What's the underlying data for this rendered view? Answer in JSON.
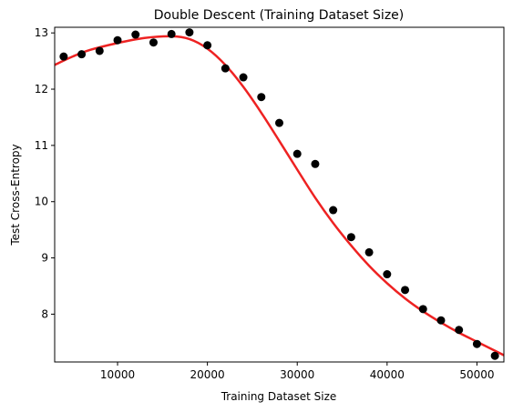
{
  "chart_data": {
    "type": "scatter",
    "title": "Double Descent (Training Dataset Size)",
    "xlabel": "Training Dataset Size",
    "ylabel": "Test Cross-Entropy",
    "xlim": [
      3000,
      53000
    ],
    "ylim": [
      7.15,
      13.1
    ],
    "x_ticks": [
      10000,
      20000,
      30000,
      40000,
      50000
    ],
    "y_ticks": [
      8,
      9,
      10,
      11,
      12,
      13
    ],
    "grid": false,
    "series": [
      {
        "kind": "scatter",
        "color": "#000000",
        "points": [
          [
            4000,
            12.58
          ],
          [
            6000,
            12.62
          ],
          [
            8000,
            12.68
          ],
          [
            10000,
            12.87
          ],
          [
            12000,
            12.97
          ],
          [
            14000,
            12.83
          ],
          [
            16000,
            12.98
          ],
          [
            18000,
            13.01
          ],
          [
            20000,
            12.78
          ],
          [
            22000,
            12.37
          ],
          [
            24000,
            12.21
          ],
          [
            26000,
            11.86
          ],
          [
            28000,
            11.4
          ],
          [
            30000,
            10.85
          ],
          [
            32000,
            10.67
          ],
          [
            34000,
            9.85
          ],
          [
            36000,
            9.37
          ],
          [
            38000,
            9.1
          ],
          [
            40000,
            8.71
          ],
          [
            42000,
            8.43
          ],
          [
            44000,
            8.09
          ],
          [
            46000,
            7.89
          ],
          [
            48000,
            7.72
          ],
          [
            50000,
            7.47
          ],
          [
            52000,
            7.26
          ]
        ]
      },
      {
        "kind": "line",
        "color": "#ee2222",
        "points": [
          [
            3000,
            12.43
          ],
          [
            5000,
            12.58
          ],
          [
            7000,
            12.7
          ],
          [
            10000,
            12.82
          ],
          [
            13000,
            12.91
          ],
          [
            16000,
            12.94
          ],
          [
            18000,
            12.89
          ],
          [
            20000,
            12.72
          ],
          [
            22000,
            12.43
          ],
          [
            24000,
            12.04
          ],
          [
            26000,
            11.58
          ],
          [
            28000,
            11.08
          ],
          [
            30000,
            10.57
          ],
          [
            32000,
            10.07
          ],
          [
            34000,
            9.62
          ],
          [
            36000,
            9.22
          ],
          [
            38000,
            8.86
          ],
          [
            40000,
            8.55
          ],
          [
            42000,
            8.28
          ],
          [
            44000,
            8.05
          ],
          [
            46000,
            7.85
          ],
          [
            48000,
            7.67
          ],
          [
            50000,
            7.51
          ],
          [
            52000,
            7.35
          ],
          [
            53000,
            7.27
          ]
        ]
      }
    ]
  }
}
